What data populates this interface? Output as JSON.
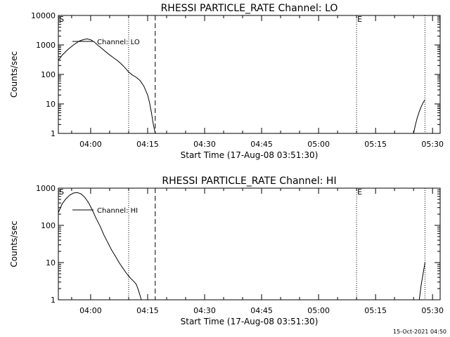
{
  "footer": {
    "timestamp": "15-Oct-2021 04:50"
  },
  "chart_data": [
    {
      "type": "line",
      "title": "RHESSI PARTICLE_RATE Channel: LO",
      "xlabel": "Start Time (17-Aug-08 03:51:30)",
      "ylabel": "Counts/sec",
      "scale_y": "log",
      "xlim": [
        "03:51:30",
        "05:32:00"
      ],
      "ylim": [
        1,
        10000
      ],
      "x_ticks": [
        "04:00",
        "04:15",
        "04:30",
        "04:45",
        "05:00",
        "05:15",
        "05:30"
      ],
      "y_ticks": [
        {
          "value": 1,
          "label": "1"
        },
        {
          "value": 10,
          "label": "10"
        },
        {
          "value": 100,
          "label": "100"
        },
        {
          "value": 1000,
          "label": "1000"
        },
        {
          "value": 10000,
          "label": "10000"
        }
      ],
      "legend": {
        "label": "Channel: LO",
        "placement": "top-left"
      },
      "markers": [
        {
          "time": "03:51:30",
          "style": "none",
          "label": "S"
        },
        {
          "time": "04:10:00",
          "style": "dotted",
          "label": ""
        },
        {
          "time": "04:17:00",
          "style": "dashed",
          "label": ""
        },
        {
          "time": "05:10:00",
          "style": "dotted",
          "label": "E"
        },
        {
          "time": "05:28:00",
          "style": "dotted",
          "label": ""
        }
      ],
      "series": [
        {
          "segments": [
            [
              {
                "x": "03:51:30",
                "y": 300
              },
              {
                "x": "03:52:30",
                "y": 450
              },
              {
                "x": "03:54:00",
                "y": 700
              },
              {
                "x": "03:55:30",
                "y": 1000
              },
              {
                "x": "03:57:00",
                "y": 1350
              },
              {
                "x": "03:58:00",
                "y": 1500
              },
              {
                "x": "03:59:00",
                "y": 1600
              },
              {
                "x": "04:00:00",
                "y": 1500
              },
              {
                "x": "04:01:00",
                "y": 1250
              },
              {
                "x": "04:02:00",
                "y": 950
              },
              {
                "x": "04:03:00",
                "y": 750
              },
              {
                "x": "04:04:00",
                "y": 580
              },
              {
                "x": "04:05:00",
                "y": 460
              },
              {
                "x": "04:06:00",
                "y": 370
              },
              {
                "x": "04:07:00",
                "y": 300
              },
              {
                "x": "04:08:00",
                "y": 230
              },
              {
                "x": "04:09:00",
                "y": 170
              },
              {
                "x": "04:10:00",
                "y": 120
              },
              {
                "x": "04:11:00",
                "y": 95
              },
              {
                "x": "04:12:00",
                "y": 80
              },
              {
                "x": "04:13:00",
                "y": 62
              },
              {
                "x": "04:14:00",
                "y": 40
              },
              {
                "x": "04:15:00",
                "y": 20
              },
              {
                "x": "04:15:30",
                "y": 11
              },
              {
                "x": "04:16:00",
                "y": 5
              },
              {
                "x": "04:16:30",
                "y": 2
              },
              {
                "x": "04:17:00",
                "y": 1
              }
            ],
            [
              {
                "x": "05:25:00",
                "y": 1
              },
              {
                "x": "05:25:30",
                "y": 2
              },
              {
                "x": "05:26:00",
                "y": 3.5
              },
              {
                "x": "05:26:30",
                "y": 5.5
              },
              {
                "x": "05:27:00",
                "y": 8
              },
              {
                "x": "05:27:30",
                "y": 11
              },
              {
                "x": "05:28:00",
                "y": 14
              }
            ]
          ]
        }
      ]
    },
    {
      "type": "line",
      "title": "RHESSI PARTICLE_RATE Channel: HI",
      "xlabel": "Start Time (17-Aug-08 03:51:30)",
      "ylabel": "Counts/sec",
      "scale_y": "log",
      "xlim": [
        "03:51:30",
        "05:32:00"
      ],
      "ylim": [
        1,
        1000
      ],
      "x_ticks": [
        "04:00",
        "04:15",
        "04:30",
        "04:45",
        "05:00",
        "05:15",
        "05:30"
      ],
      "y_ticks": [
        {
          "value": 1,
          "label": "1"
        },
        {
          "value": 10,
          "label": "10"
        },
        {
          "value": 100,
          "label": "100"
        },
        {
          "value": 1000,
          "label": "1000"
        }
      ],
      "legend": {
        "label": "Channel: HI",
        "placement": "top-left"
      },
      "markers": [
        {
          "time": "03:51:30",
          "style": "none",
          "label": "S"
        },
        {
          "time": "04:10:00",
          "style": "dotted",
          "label": ""
        },
        {
          "time": "04:17:00",
          "style": "dashed",
          "label": ""
        },
        {
          "time": "05:10:00",
          "style": "dotted",
          "label": "E"
        },
        {
          "time": "05:28:00",
          "style": "dotted",
          "label": ""
        }
      ],
      "series": [
        {
          "segments": [
            [
              {
                "x": "03:51:30",
                "y": 220
              },
              {
                "x": "03:52:30",
                "y": 380
              },
              {
                "x": "03:53:30",
                "y": 520
              },
              {
                "x": "03:54:30",
                "y": 650
              },
              {
                "x": "03:55:30",
                "y": 740
              },
              {
                "x": "03:56:30",
                "y": 760
              },
              {
                "x": "03:57:30",
                "y": 700
              },
              {
                "x": "03:58:30",
                "y": 560
              },
              {
                "x": "03:59:30",
                "y": 400
              },
              {
                "x": "04:00:30",
                "y": 250
              },
              {
                "x": "04:01:30",
                "y": 150
              },
              {
                "x": "04:02:30",
                "y": 95
              },
              {
                "x": "04:03:30",
                "y": 55
              },
              {
                "x": "04:04:30",
                "y": 35
              },
              {
                "x": "04:05:30",
                "y": 22
              },
              {
                "x": "04:06:30",
                "y": 15
              },
              {
                "x": "04:07:30",
                "y": 10
              },
              {
                "x": "04:08:30",
                "y": 7
              },
              {
                "x": "04:09:30",
                "y": 5
              },
              {
                "x": "04:10:30",
                "y": 3.8
              },
              {
                "x": "04:11:30",
                "y": 3
              },
              {
                "x": "04:12:00",
                "y": 2.6
              },
              {
                "x": "04:12:30",
                "y": 1.9
              },
              {
                "x": "04:13:00",
                "y": 1.3
              },
              {
                "x": "04:13:20",
                "y": 1
              }
            ],
            [
              {
                "x": "05:26:30",
                "y": 1
              },
              {
                "x": "05:27:00",
                "y": 2.5
              },
              {
                "x": "05:27:30",
                "y": 5
              },
              {
                "x": "05:28:00",
                "y": 10
              }
            ]
          ]
        }
      ]
    }
  ]
}
